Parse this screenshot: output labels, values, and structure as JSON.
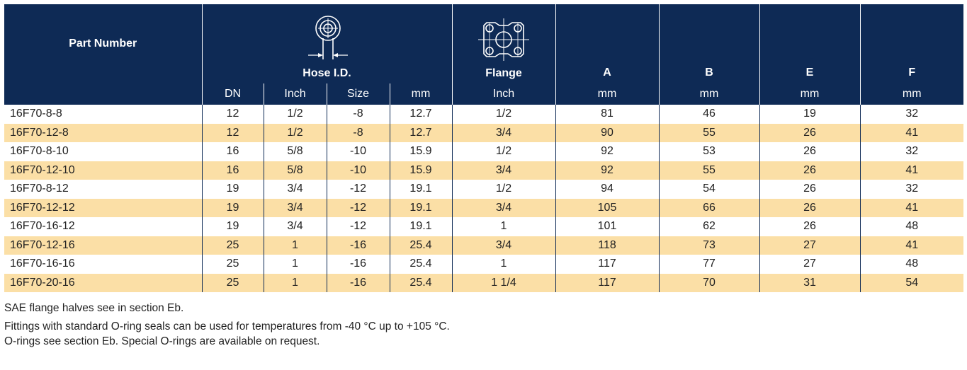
{
  "header": {
    "part_number": "Part Number",
    "hose_id": "Hose I.D.",
    "flange": "Flange",
    "col_a": "A",
    "col_b": "B",
    "col_e": "E",
    "col_f": "F",
    "units": [
      "DN",
      "Inch",
      "Size",
      "mm",
      "Inch",
      "mm",
      "mm",
      "mm",
      "mm"
    ]
  },
  "icons": {
    "hose": "hose-id-cross-section-icon",
    "flange": "flange-outline-icon"
  },
  "rows": [
    {
      "part": "16F70-8-8",
      "dn": "12",
      "inch": "1/2",
      "size": "-8",
      "mm": "12.7",
      "flange": "1/2",
      "a": "81",
      "b": "46",
      "e": "19",
      "f": "32"
    },
    {
      "part": "16F70-12-8",
      "dn": "12",
      "inch": "1/2",
      "size": "-8",
      "mm": "12.7",
      "flange": "3/4",
      "a": "90",
      "b": "55",
      "e": "26",
      "f": "41"
    },
    {
      "part": "16F70-8-10",
      "dn": "16",
      "inch": "5/8",
      "size": "-10",
      "mm": "15.9",
      "flange": "1/2",
      "a": "92",
      "b": "53",
      "e": "26",
      "f": "32"
    },
    {
      "part": "16F70-12-10",
      "dn": "16",
      "inch": "5/8",
      "size": "-10",
      "mm": "15.9",
      "flange": "3/4",
      "a": "92",
      "b": "55",
      "e": "26",
      "f": "41"
    },
    {
      "part": "16F70-8-12",
      "dn": "19",
      "inch": "3/4",
      "size": "-12",
      "mm": "19.1",
      "flange": "1/2",
      "a": "94",
      "b": "54",
      "e": "26",
      "f": "32"
    },
    {
      "part": "16F70-12-12",
      "dn": "19",
      "inch": "3/4",
      "size": "-12",
      "mm": "19.1",
      "flange": "3/4",
      "a": "105",
      "b": "66",
      "e": "26",
      "f": "41"
    },
    {
      "part": "16F70-16-12",
      "dn": "19",
      "inch": "3/4",
      "size": "-12",
      "mm": "19.1",
      "flange": "1",
      "a": "101",
      "b": "62",
      "e": "26",
      "f": "48"
    },
    {
      "part": "16F70-12-16",
      "dn": "25",
      "inch": "1",
      "size": "-16",
      "mm": "25.4",
      "flange": "3/4",
      "a": "118",
      "b": "73",
      "e": "27",
      "f": "41"
    },
    {
      "part": "16F70-16-16",
      "dn": "25",
      "inch": "1",
      "size": "-16",
      "mm": "25.4",
      "flange": "1",
      "a": "117",
      "b": "77",
      "e": "27",
      "f": "48"
    },
    {
      "part": "16F70-20-16",
      "dn": "25",
      "inch": "1",
      "size": "-16",
      "mm": "25.4",
      "flange": "1 1/4",
      "a": "117",
      "b": "70",
      "e": "31",
      "f": "54"
    }
  ],
  "notes": [
    "SAE flange halves see in section Eb.",
    "Fittings with standard O-ring seals can be used for temperatures from -40 °C up to +105 °C.",
    "O-rings see section Eb. Special O-rings are available on request."
  ],
  "colors": {
    "header_bg": "#0e2a55",
    "row_shade": "#fbdfa6"
  }
}
